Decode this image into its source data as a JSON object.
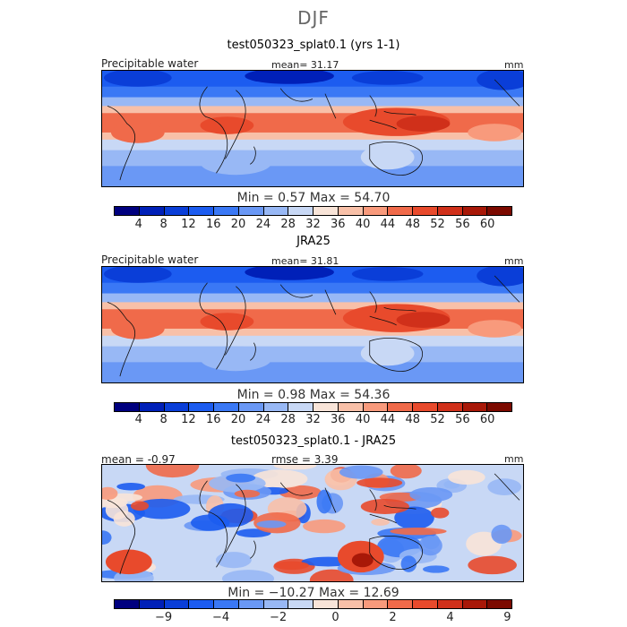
{
  "title": "DJF",
  "panels": [
    {
      "title": "test050323_splat0.1 (yrs 1-1)",
      "left_label": "Precipitable water",
      "center_label": "mean=   31.17",
      "right_label": "mm",
      "minmax_label": "Min =     0.57  Max =   54.70",
      "map_kind": "field"
    },
    {
      "title": "JRA25",
      "left_label": "Precipitable water",
      "center_label": "mean=   31.81",
      "right_label": "mm",
      "minmax_label": "Min =     0.98  Max =   54.36",
      "map_kind": "field"
    },
    {
      "title": "test050323_splat0.1 - JRA25",
      "left_label": "mean =   -0.97",
      "center_label": "rmse =    3.39",
      "right_label": "mm",
      "minmax_label": "Min = −10.27  Max =   12.69",
      "map_kind": "diff"
    }
  ],
  "field_colorbar": {
    "colors": [
      "#00007f",
      "#0020b8",
      "#0a3ed8",
      "#1c5cf0",
      "#3a78f5",
      "#6a98f5",
      "#98b8f5",
      "#c8d8f5",
      "#f8e4d8",
      "#f8c0a8",
      "#f89a7c",
      "#f06a4a",
      "#e84a2c",
      "#d0301a",
      "#a81808",
      "#7c0a00"
    ],
    "ticks": [
      "4",
      "8",
      "12",
      "16",
      "20",
      "24",
      "28",
      "32",
      "36",
      "40",
      "44",
      "48",
      "52",
      "56",
      "60"
    ]
  },
  "diff_colorbar": {
    "colors": [
      "#00007f",
      "#0020b8",
      "#0a3ed8",
      "#1c5cf0",
      "#3a78f5",
      "#6a98f5",
      "#98b8f5",
      "#c8d8f5",
      "#f8e4d8",
      "#f8c0a8",
      "#f89a7c",
      "#f06a4a",
      "#e84a2c",
      "#d0301a",
      "#a81808",
      "#7c0a00"
    ],
    "ticks": [
      "−9",
      "−4",
      "−2",
      "0",
      "2",
      "4",
      "9"
    ]
  }
}
